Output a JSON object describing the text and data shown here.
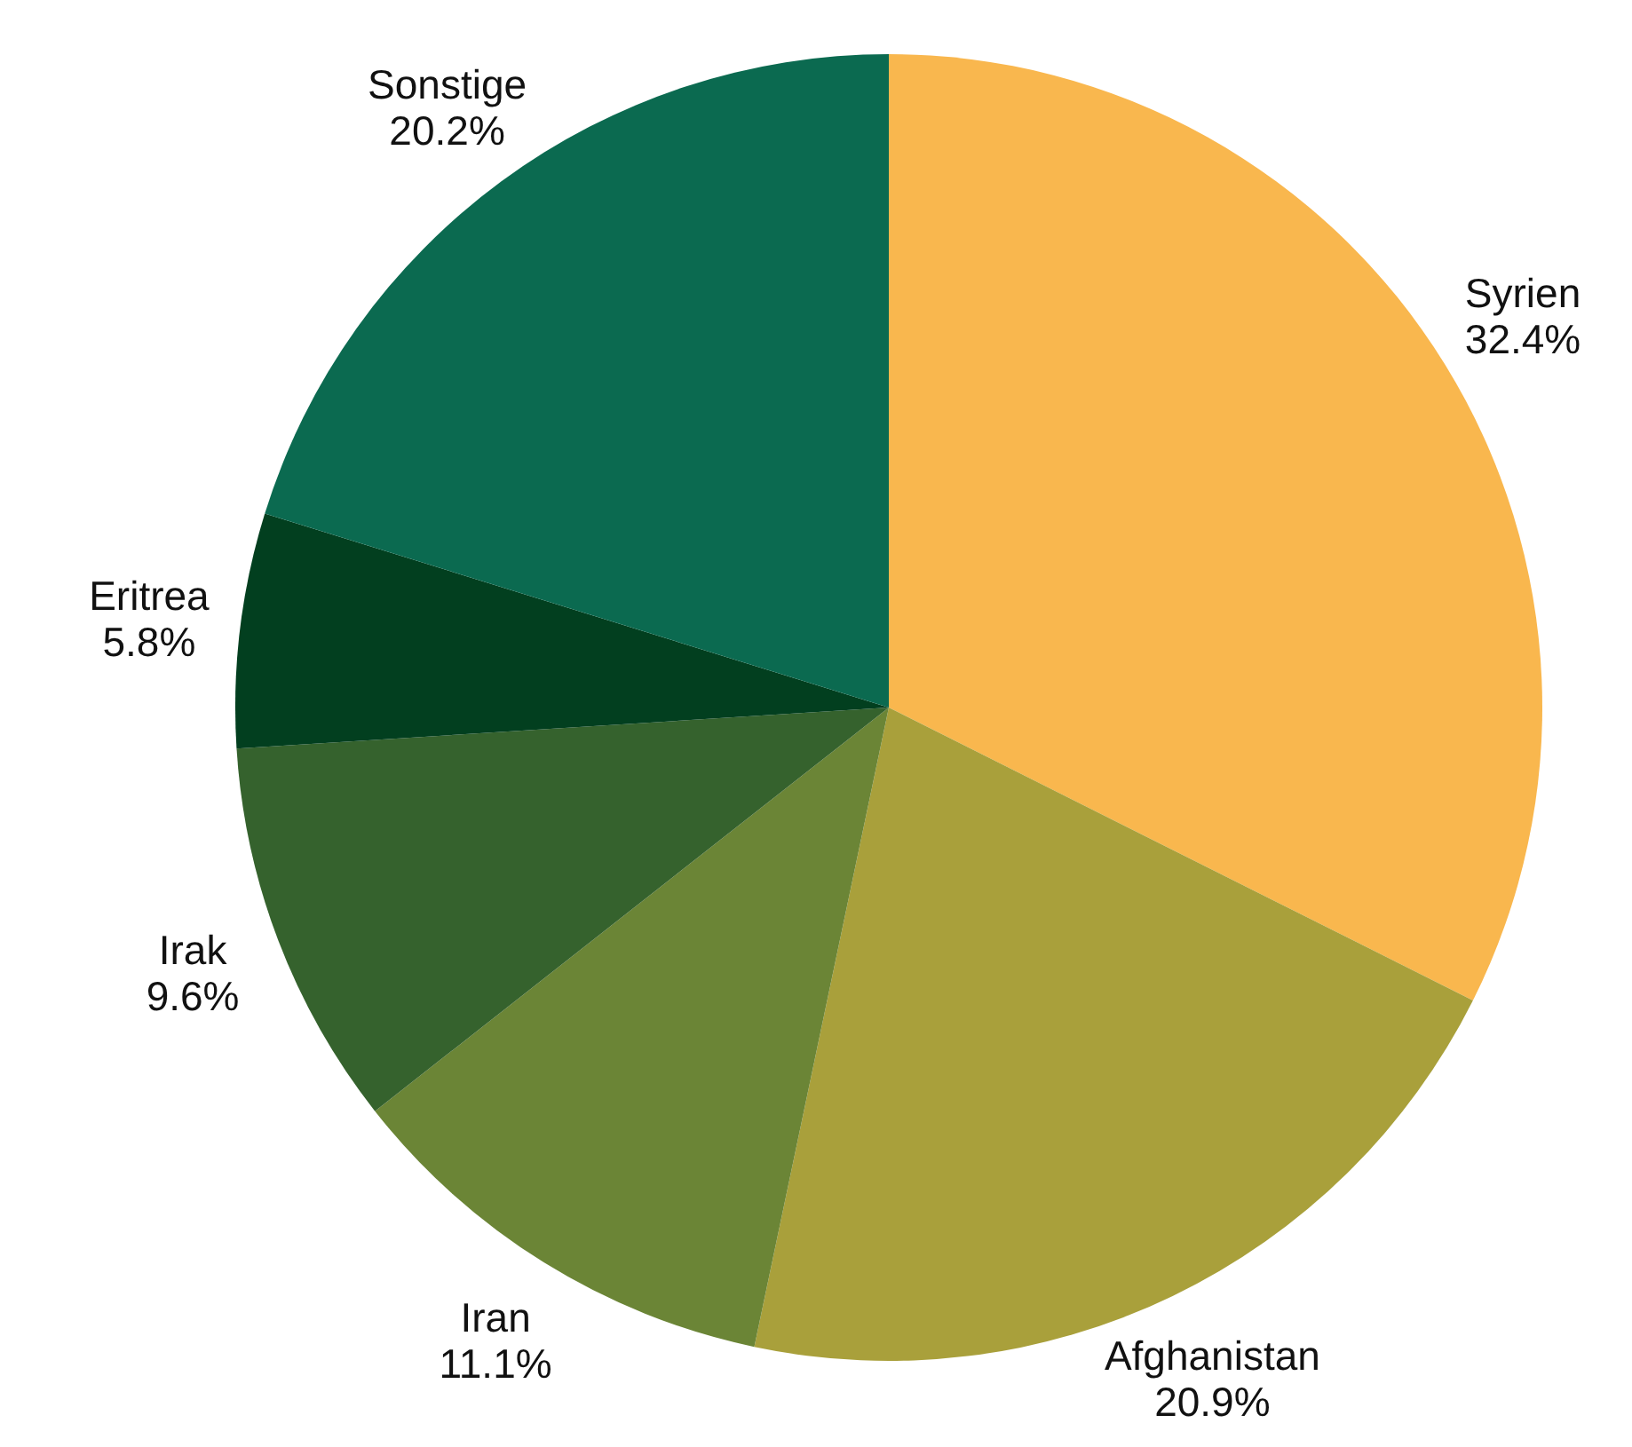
{
  "chart_data": {
    "type": "pie",
    "categories": [
      "Syrien",
      "Afghanistan",
      "Iran",
      "Irak",
      "Eritrea",
      "Sonstige"
    ],
    "values": [
      32.4,
      20.9,
      11.1,
      9.6,
      5.8,
      20.2
    ],
    "colors": [
      "#f9b74e",
      "#a9a03b",
      "#6b8536",
      "#35622d",
      "#023f1f",
      "#0b6a50"
    ],
    "value_labels": [
      "32.4%",
      "20.9%",
      "11.1%",
      "9.6%",
      "5.8%",
      "20.2%"
    ]
  }
}
